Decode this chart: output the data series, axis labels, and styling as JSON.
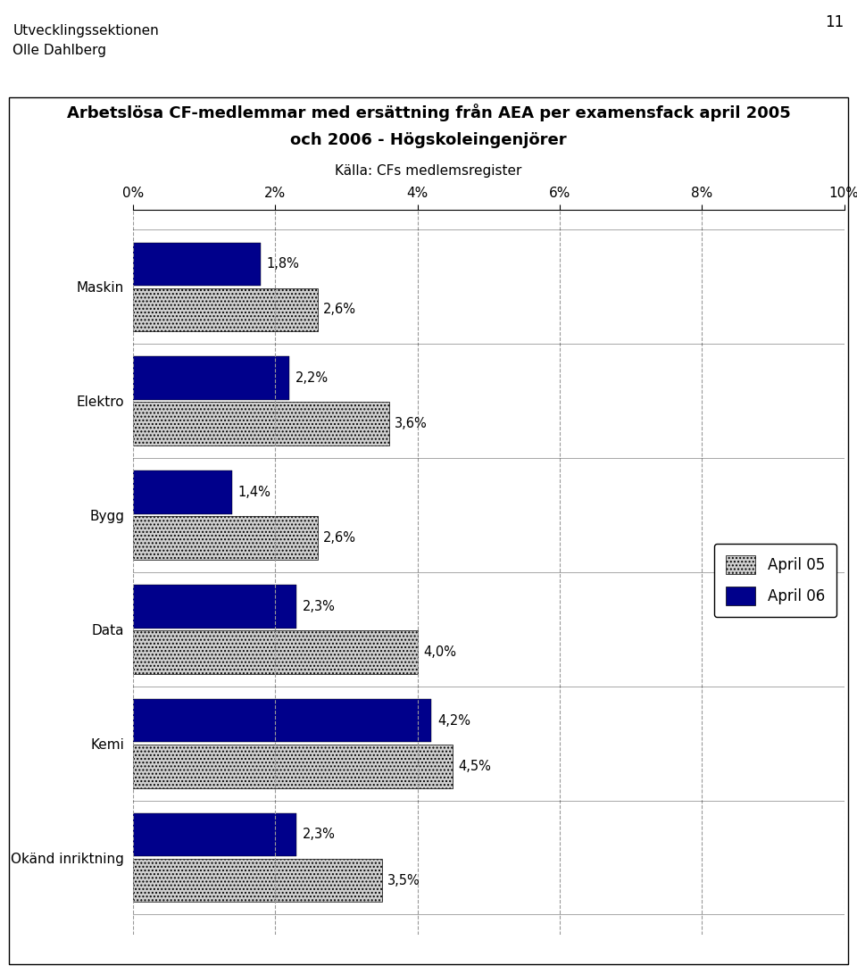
{
  "title_line1": "Arbetslösa CF-medlemmar med ersättning från AEA per examensfack april 2005",
  "title_line2": "och 2006 - Högskoleingenjörer",
  "subtitle": "Källa: CFs medlemsregister",
  "header_line1": "Utvecklingssektionen",
  "header_line2": "Olle Dahlberg",
  "page_number": "11",
  "categories": [
    "Maskin",
    "Elektro",
    "Bygg",
    "Data",
    "Kemi",
    "Okänd inriktning"
  ],
  "april05": [
    2.6,
    3.6,
    2.6,
    4.0,
    4.5,
    3.5
  ],
  "april06": [
    1.8,
    2.2,
    1.4,
    2.3,
    4.2,
    2.3
  ],
  "april05_labels": [
    "2,6%",
    "3,6%",
    "2,6%",
    "4,0%",
    "4,5%",
    "3,5%"
  ],
  "april06_labels": [
    "1,8%",
    "2,2%",
    "1,4%",
    "2,3%",
    "4,2%",
    "2,3%"
  ],
  "color_april05": "#d0d0d0",
  "color_april06": "#00008b",
  "hatch_april05": "....",
  "xlim": [
    0,
    10
  ],
  "xticks": [
    0,
    2,
    4,
    6,
    8,
    10
  ],
  "xtick_labels": [
    "0%",
    "2%",
    "4%",
    "6%",
    "8%",
    "10%"
  ],
  "legend_april05": "April 05",
  "legend_april06": "April 06",
  "bar_height": 0.38,
  "background_color": "#ffffff",
  "grid_color": "#999999",
  "label_fontsize": 10.5,
  "tick_fontsize": 11,
  "title_fontsize": 13,
  "subtitle_fontsize": 11,
  "category_fontsize": 11,
  "legend_fontsize": 12
}
